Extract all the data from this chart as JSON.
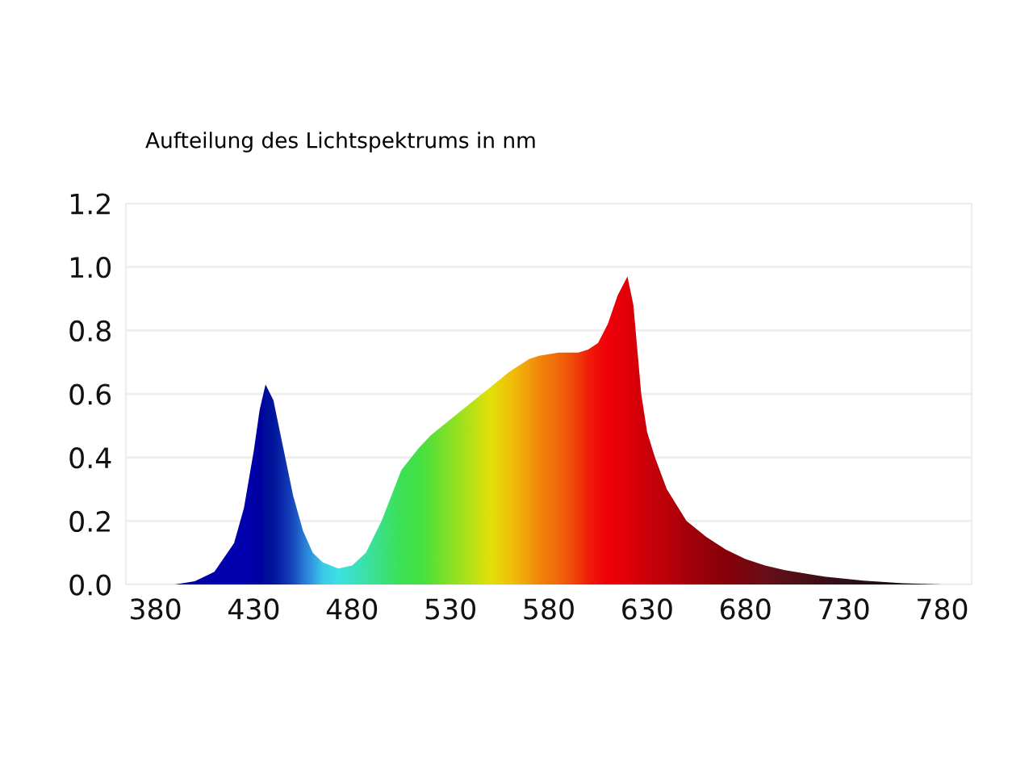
{
  "chart_data": {
    "type": "area",
    "title": "Aufteilung des Lichtspektrums in nm",
    "x": [
      390,
      400,
      410,
      420,
      425,
      430,
      433,
      436,
      440,
      445,
      450,
      455,
      460,
      465,
      473,
      480,
      487,
      495,
      505,
      514,
      520,
      530,
      540,
      550,
      560,
      570,
      575,
      585,
      595,
      600,
      605,
      610,
      615,
      620,
      623,
      627,
      630,
      634,
      640,
      650,
      660,
      670,
      680,
      690,
      700,
      720,
      740,
      760,
      780
    ],
    "series": [
      {
        "values": [
          0.0,
          0.01,
          0.04,
          0.13,
          0.24,
          0.42,
          0.55,
          0.63,
          0.58,
          0.43,
          0.28,
          0.17,
          0.1,
          0.07,
          0.05,
          0.06,
          0.1,
          0.2,
          0.36,
          0.43,
          0.47,
          0.52,
          0.57,
          0.62,
          0.67,
          0.71,
          0.72,
          0.73,
          0.73,
          0.74,
          0.76,
          0.82,
          0.91,
          0.97,
          0.88,
          0.6,
          0.48,
          0.4,
          0.3,
          0.2,
          0.15,
          0.11,
          0.08,
          0.06,
          0.045,
          0.025,
          0.012,
          0.004,
          0.0
        ],
        "colors": [
          "#0000a0",
          "#0000a8",
          "#0000b0",
          "#0000b0",
          "#0000b0",
          "#0000a8",
          "#0000a0",
          "#00109c",
          "#00189c",
          "#1030b0",
          "#1a50c0",
          "#2a80d8",
          "#38a8e8",
          "#40d8f0",
          "#40f0e8",
          "#40f0c8",
          "#40f0a8",
          "#40f080",
          "#40f050",
          "#48f040",
          "#60f030",
          "#90f020",
          "#c0f010",
          "#f0f000",
          "#ffd000",
          "#ffa800",
          "#ff9000",
          "#ff7000",
          "#ff4000",
          "#ff2000",
          "#ff1000",
          "#ff0000",
          "#f80000",
          "#f00000",
          "#e80000",
          "#e00000",
          "#d80000",
          "#d00000",
          "#c80000",
          "#b00000",
          "#a00000",
          "#900000",
          "#800808",
          "#701010",
          "#601010",
          "#401010",
          "#281010",
          "#181010",
          "#101010"
        ]
      }
    ],
    "xlim": [
      365,
      795
    ],
    "xticks": [
      380,
      430,
      480,
      530,
      580,
      630,
      680,
      730,
      780
    ],
    "ylim": [
      0,
      1.2
    ],
    "yticks": [
      {
        "value": 0,
        "label": "0.0"
      },
      {
        "value": 0.2,
        "label": "0.2"
      },
      {
        "value": 0.4,
        "label": "0.4"
      },
      {
        "value": 0.6,
        "label": "0.6"
      },
      {
        "value": 0.8,
        "label": "0.8"
      },
      {
        "value": 1.0,
        "label": "1.0"
      },
      {
        "value": 1.2,
        "label": "1.2"
      }
    ],
    "grid": "y",
    "legend": false
  }
}
